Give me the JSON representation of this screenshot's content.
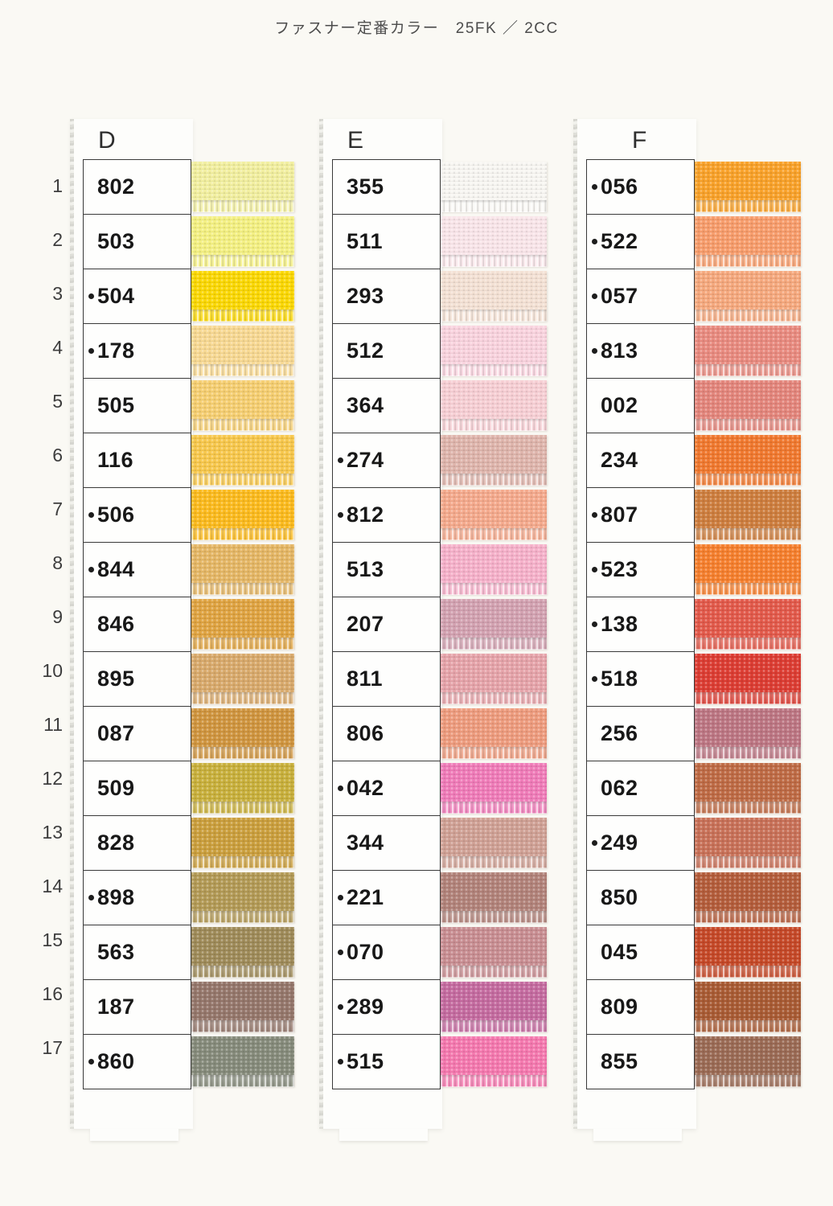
{
  "page_title": "ファスナー定番カラー　25FK ／ 2CC",
  "row_numbers": [
    "1",
    "2",
    "3",
    "4",
    "5",
    "6",
    "7",
    "8",
    "9",
    "10",
    "11",
    "12",
    "13",
    "14",
    "15",
    "16",
    "17"
  ],
  "columns": [
    {
      "letter": "D",
      "rows": [
        {
          "code": "802",
          "dot": false,
          "color": "#f2efa0"
        },
        {
          "code": "503",
          "dot": false,
          "color": "#f4f083"
        },
        {
          "code": "504",
          "dot": true,
          "color": "#fbd805"
        },
        {
          "code": "178",
          "dot": true,
          "color": "#f8d993"
        },
        {
          "code": "505",
          "dot": false,
          "color": "#f6cf72"
        },
        {
          "code": "116",
          "dot": false,
          "color": "#f8c84d"
        },
        {
          "code": "506",
          "dot": true,
          "color": "#fcbb1e"
        },
        {
          "code": "844",
          "dot": true,
          "color": "#e5b766"
        },
        {
          "code": "846",
          "dot": false,
          "color": "#e0a442"
        },
        {
          "code": "895",
          "dot": false,
          "color": "#d9aa6c"
        },
        {
          "code": "087",
          "dot": false,
          "color": "#d0953f"
        },
        {
          "code": "509",
          "dot": false,
          "color": "#c9b03c"
        },
        {
          "code": "828",
          "dot": false,
          "color": "#cb9f3d"
        },
        {
          "code": "898",
          "dot": true,
          "color": "#b39a56"
        },
        {
          "code": "563",
          "dot": false,
          "color": "#9f8b59"
        },
        {
          "code": "187",
          "dot": false,
          "color": "#95776b"
        },
        {
          "code": "860",
          "dot": true,
          "color": "#868b7b"
        }
      ]
    },
    {
      "letter": "E",
      "rows": [
        {
          "code": "355",
          "dot": false,
          "color": "#f8f6f2"
        },
        {
          "code": "511",
          "dot": false,
          "color": "#f9e5e9"
        },
        {
          "code": "293",
          "dot": false,
          "color": "#f4e1d4"
        },
        {
          "code": "512",
          "dot": false,
          "color": "#f9d3de"
        },
        {
          "code": "364",
          "dot": false,
          "color": "#f7cfd4"
        },
        {
          "code": "274",
          "dot": true,
          "color": "#dfb5ac"
        },
        {
          "code": "812",
          "dot": true,
          "color": "#f5aa8d"
        },
        {
          "code": "513",
          "dot": false,
          "color": "#f6b1ca"
        },
        {
          "code": "207",
          "dot": false,
          "color": "#d3a2b1"
        },
        {
          "code": "811",
          "dot": false,
          "color": "#e6a4aa"
        },
        {
          "code": "806",
          "dot": false,
          "color": "#ee9c7e"
        },
        {
          "code": "042",
          "dot": true,
          "color": "#f07cb9"
        },
        {
          "code": "344",
          "dot": false,
          "color": "#d0a195"
        },
        {
          "code": "221",
          "dot": true,
          "color": "#b2837a"
        },
        {
          "code": "070",
          "dot": true,
          "color": "#c98e92"
        },
        {
          "code": "289",
          "dot": true,
          "color": "#c56ba0"
        },
        {
          "code": "515",
          "dot": true,
          "color": "#f579af"
        }
      ]
    },
    {
      "letter": "F",
      "rows": [
        {
          "code": "056",
          "dot": true,
          "color": "#f9a22a"
        },
        {
          "code": "522",
          "dot": true,
          "color": "#f89d6c"
        },
        {
          "code": "057",
          "dot": true,
          "color": "#f6a97e"
        },
        {
          "code": "813",
          "dot": true,
          "color": "#e98b80"
        },
        {
          "code": "002",
          "dot": false,
          "color": "#e4867c"
        },
        {
          "code": "234",
          "dot": false,
          "color": "#f1792f"
        },
        {
          "code": "807",
          "dot": true,
          "color": "#ce7e3e"
        },
        {
          "code": "523",
          "dot": true,
          "color": "#f6802e"
        },
        {
          "code": "138",
          "dot": true,
          "color": "#e35a4b"
        },
        {
          "code": "518",
          "dot": true,
          "color": "#dd3d33"
        },
        {
          "code": "256",
          "dot": false,
          "color": "#bd7683"
        },
        {
          "code": "062",
          "dot": false,
          "color": "#bf6b45"
        },
        {
          "code": "249",
          "dot": true,
          "color": "#c97158"
        },
        {
          "code": "850",
          "dot": false,
          "color": "#b45d3b"
        },
        {
          "code": "045",
          "dot": false,
          "color": "#c64928"
        },
        {
          "code": "809",
          "dot": false,
          "color": "#a95b34"
        },
        {
          "code": "855",
          "dot": false,
          "color": "#9b6b55"
        }
      ]
    }
  ]
}
